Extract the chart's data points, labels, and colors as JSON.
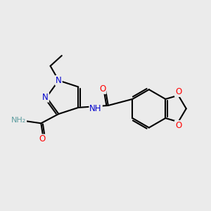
{
  "bg_color": "#ebebeb",
  "bond_color": "#000000",
  "bond_width": 1.5,
  "atom_colors": {
    "N": "#0000cd",
    "O": "#ff0000",
    "C": "#000000",
    "H": "#5f9ea0"
  },
  "font_size": 8.5,
  "fig_size": [
    3.0,
    3.0
  ],
  "dpi": 100
}
